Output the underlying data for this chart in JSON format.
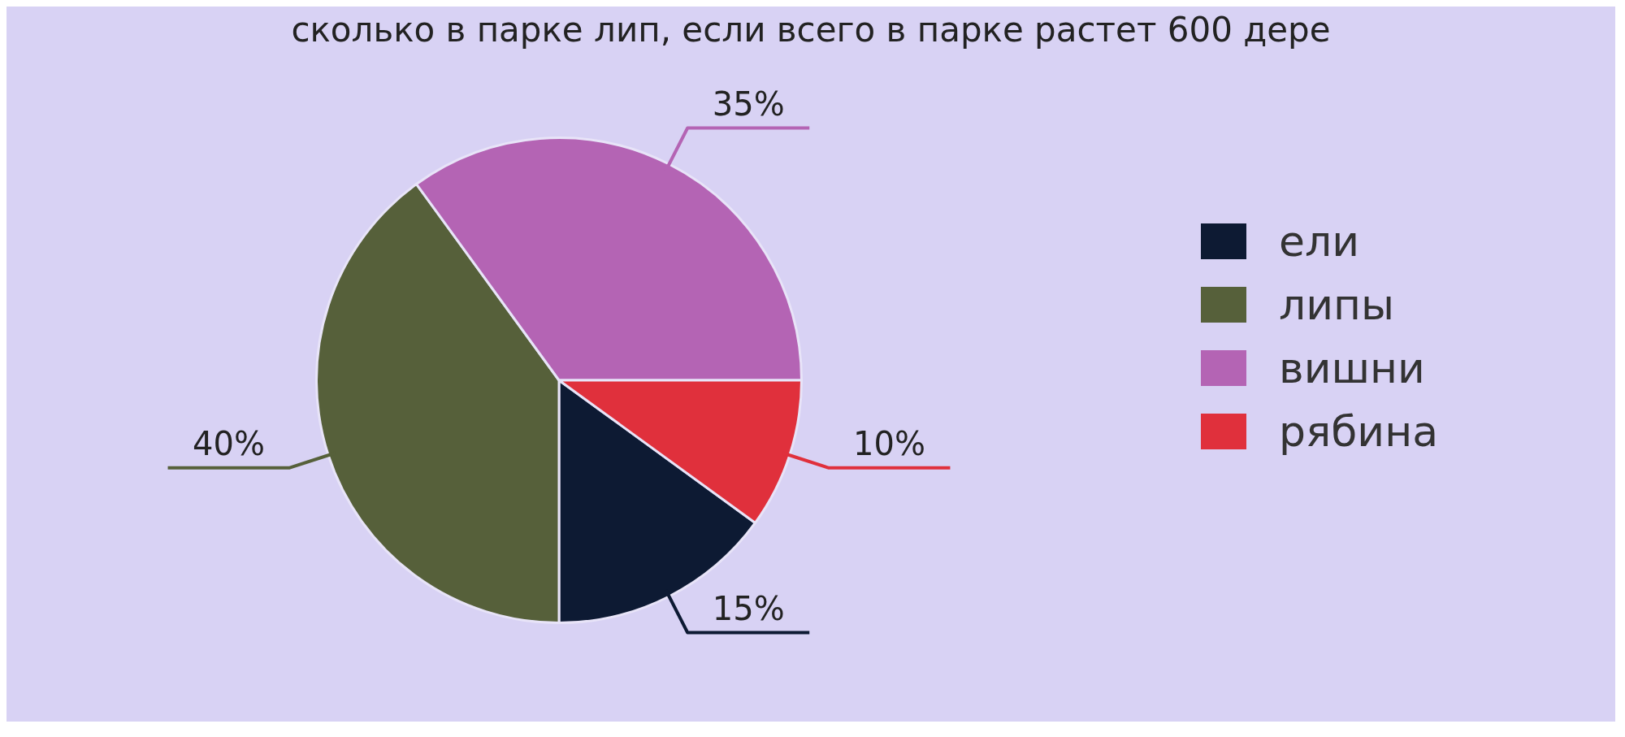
{
  "chart_data": {
    "type": "pie",
    "title": "сколько в парке лип, если всего в парке растет 600 дере",
    "categories": [
      "ели",
      "липы",
      "вишни",
      "рябина"
    ],
    "values": [
      15,
      40,
      35,
      10
    ],
    "colors": [
      "#0d1a33",
      "#56603a",
      "#b464b4",
      "#e0303c"
    ],
    "value_labels": [
      "15%",
      "40%",
      "35%",
      "10%"
    ],
    "legend": "right"
  }
}
